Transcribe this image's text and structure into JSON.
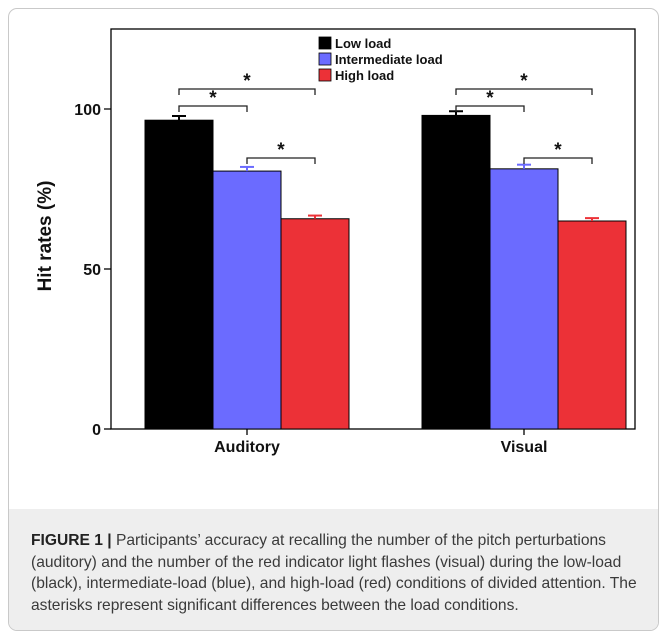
{
  "chart_data": {
    "type": "bar",
    "categories": [
      "Auditory",
      "Visual"
    ],
    "series": [
      {
        "name": "Low load",
        "values": [
          96.5,
          98.0
        ],
        "errors": [
          1.3,
          1.3
        ],
        "color": "#000000"
      },
      {
        "name": "Intermediate load",
        "values": [
          80.6,
          81.3
        ],
        "errors": [
          1.3,
          1.3
        ],
        "color": "#6b6bff"
      },
      {
        "name": "High load",
        "values": [
          65.7,
          65.0
        ],
        "errors": [
          1.0,
          0.9
        ],
        "color": "#ec3137"
      }
    ],
    "title": "",
    "xlabel": "",
    "ylabel": "Hit rates (%)",
    "ylim": [
      0,
      125
    ],
    "yticks": [
      0,
      50,
      100
    ],
    "ytick_labels": [
      "0",
      "50",
      "100"
    ],
    "grid": false,
    "legend": "top-center",
    "significance": [
      {
        "category": "Auditory",
        "pair": [
          "Low load",
          "Intermediate load"
        ],
        "label": "*"
      },
      {
        "category": "Auditory",
        "pair": [
          "Low load",
          "High load"
        ],
        "label": "*"
      },
      {
        "category": "Auditory",
        "pair": [
          "Intermediate load",
          "High load"
        ],
        "label": "*"
      },
      {
        "category": "Visual",
        "pair": [
          "Low load",
          "Intermediate load"
        ],
        "label": "*"
      },
      {
        "category": "Visual",
        "pair": [
          "Low load",
          "High load"
        ],
        "label": "*"
      },
      {
        "category": "Visual",
        "pair": [
          "Intermediate load",
          "High load"
        ],
        "label": "*"
      }
    ]
  },
  "caption": {
    "label": "FIGURE 1 |",
    "text": " Participants’ accuracy at recalling the number of the pitch perturbations (auditory) and the number of the red indicator light flashes (visual) during the low-load (black), intermediate-load (blue), and high-load (red) conditions of divided attention. The asterisks represent significant differences between the load conditions."
  }
}
